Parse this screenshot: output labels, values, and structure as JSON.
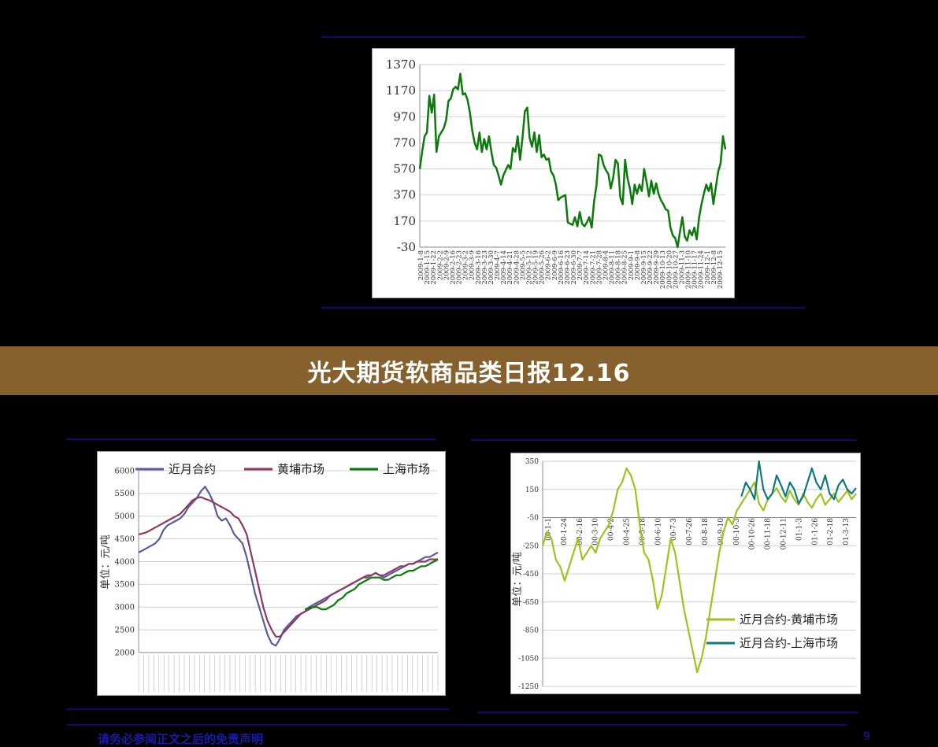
{
  "banner": {
    "title": "光大期货软商品类日报12.16"
  },
  "footer": {
    "text": "请务必参阅正文之后的免责声明",
    "page": "9"
  },
  "chart_data": [
    {
      "id": "top",
      "type": "line",
      "title": "",
      "ylim": [
        -30,
        1370
      ],
      "yticks": [
        1370,
        1170,
        970,
        770,
        570,
        370,
        170,
        -30
      ],
      "xticks": [
        "2009-1-8",
        "2009-1-15",
        "2009-1-22",
        "2009-2-2",
        "2009-2-9",
        "2009-2-16",
        "2009-2-23",
        "2009-3-2",
        "2009-3-9",
        "2009-3-16",
        "2009-3-23",
        "2009-3-30",
        "2009-4-7",
        "2009-4-14",
        "2009-4-21",
        "2009-4-28",
        "2009-5-5",
        "2009-5-12",
        "2009-5-19",
        "2009-5-26",
        "2009-6-2",
        "2009-6-9",
        "2009-6-16",
        "2009-6-23",
        "2009-6-30",
        "2009-7-7",
        "2009-7-14",
        "2009-7-21",
        "2009-7-28",
        "2009-8-4",
        "2009-8-11",
        "2009-8-18",
        "2009-8-25",
        "2009-9-1",
        "2009-9-8",
        "2009-9-15",
        "2009-9-22",
        "2009-9-29",
        "2009-10-13",
        "2009-10-20",
        "2009-10-27",
        "2009-11-3",
        "2009-11-10",
        "2009-11-17",
        "2009-11-24",
        "2009-12-1",
        "2009-12-8",
        "2009-12-15"
      ],
      "series": [
        {
          "color": "#0b7a0b",
          "values": [
            570,
            700,
            820,
            850,
            1130,
            1000,
            1140,
            700,
            820,
            850,
            880,
            940,
            1090,
            1110,
            1180,
            1200,
            1180,
            1300,
            1140,
            1150,
            1100,
            1000,
            860,
            770,
            720,
            850,
            700,
            800,
            720,
            820,
            700,
            600,
            580,
            520,
            450,
            520,
            560,
            600,
            570,
            730,
            700,
            820,
            640,
            800,
            1010,
            1040,
            810,
            740,
            850,
            700,
            830,
            660,
            680,
            640,
            650,
            550,
            520,
            450,
            330,
            350,
            360,
            370,
            160,
            150,
            140,
            200,
            130,
            240,
            150,
            130,
            160,
            200,
            120,
            320,
            440,
            680,
            670,
            600,
            560,
            530,
            420,
            500,
            640,
            610,
            350,
            300,
            640,
            500,
            420,
            300,
            450,
            380,
            450,
            400,
            570,
            470,
            360,
            480,
            380,
            460,
            380,
            330,
            300,
            260,
            250,
            120,
            60,
            40,
            -30,
            90,
            200,
            50,
            20,
            100,
            60,
            120,
            30,
            200,
            300,
            380,
            450,
            400,
            460,
            300,
            430,
            550,
            610,
            820,
            720
          ]
        }
      ]
    },
    {
      "id": "bottom-left",
      "type": "line",
      "ylabel": "单位：元/吨",
      "ylim": [
        2000,
        6000
      ],
      "yticks": [
        6000,
        5500,
        5000,
        4500,
        4000,
        3500,
        3000,
        2500,
        2000
      ],
      "series": [
        {
          "name": "近月合约",
          "color": "#5b5b9a",
          "values": [
            4200,
            4250,
            4300,
            4350,
            4400,
            4500,
            4700,
            4800,
            4850,
            4900,
            4950,
            5050,
            5200,
            5300,
            5400,
            5550,
            5650,
            5500,
            5300,
            5000,
            4900,
            4950,
            4800,
            4600,
            4500,
            4400,
            4100,
            3700,
            3300,
            3000,
            2700,
            2400,
            2200,
            2150,
            2300,
            2500,
            2600,
            2700,
            2800,
            2850,
            2900,
            3000,
            3050,
            3100,
            3150,
            3200,
            3250,
            3300,
            3350,
            3400,
            3450,
            3500,
            3550,
            3600,
            3650,
            3700,
            3700,
            3750,
            3700,
            3650,
            3700,
            3750,
            3800,
            3850,
            3900,
            3950,
            3950,
            4000,
            4050,
            4100,
            4100,
            4150,
            4200
          ]
        },
        {
          "name": "黄埔市场",
          "color": "#8b3a62",
          "values": [
            4600,
            4620,
            4650,
            4700,
            4750,
            4800,
            4850,
            4900,
            4950,
            5000,
            5050,
            5150,
            5250,
            5350,
            5400,
            5420,
            5380,
            5350,
            5300,
            5250,
            5200,
            5150,
            5100,
            5000,
            4950,
            4800,
            4600,
            4200,
            3800,
            3400,
            3000,
            2700,
            2500,
            2350,
            2350,
            2450,
            2550,
            2650,
            2750,
            2850,
            2900,
            2950,
            3000,
            3050,
            3100,
            3150,
            3250,
            3300,
            3350,
            3400,
            3450,
            3500,
            3550,
            3600,
            3650,
            3650,
            3700,
            3750,
            3700,
            3700,
            3750,
            3800,
            3850,
            3900,
            3900,
            3950,
            3950,
            4000,
            4000,
            4000,
            4050,
            4050,
            4050
          ]
        },
        {
          "name": "上海市场",
          "color": "#0b7a0b",
          "values": [
            null,
            null,
            null,
            null,
            null,
            null,
            null,
            null,
            null,
            null,
            null,
            null,
            null,
            null,
            null,
            null,
            null,
            null,
            null,
            null,
            null,
            null,
            null,
            null,
            null,
            null,
            null,
            null,
            null,
            null,
            null,
            null,
            null,
            null,
            null,
            null,
            null,
            null,
            null,
            null,
            2950,
            2980,
            3000,
            3000,
            2950,
            2950,
            3000,
            3050,
            3150,
            3200,
            3300,
            3350,
            3400,
            3500,
            3550,
            3600,
            3650,
            3650,
            3650,
            3600,
            3600,
            3650,
            3700,
            3700,
            3750,
            3800,
            3800,
            3850,
            3900,
            3900,
            3950,
            4000,
            4050
          ]
        }
      ]
    },
    {
      "id": "bottom-right",
      "type": "line",
      "ylabel": "单位：元/吨",
      "ylim": [
        -1250,
        350
      ],
      "yticks": [
        350,
        150,
        -50,
        -250,
        -450,
        -650,
        -850,
        -1050,
        -1250
      ],
      "xticks": [
        "00-1-1",
        "00-1-24",
        "00-2-16",
        "00-3-10",
        "00-4-2",
        "00-4-25",
        "00-5-18",
        "00-6-10",
        "00-7-3",
        "00-7-26",
        "00-8-18",
        "00-9-10",
        "00-10-3",
        "00-10-26",
        "00-11-18",
        "00-12-11",
        "01-1-3",
        "01-1-26",
        "01-2-18",
        "01-3-13"
      ],
      "series": [
        {
          "name": "近月合约-黄埔市场",
          "color": "#9dc41c",
          "values": [
            -250,
            -150,
            -200,
            -350,
            -400,
            -500,
            -400,
            -300,
            -200,
            -350,
            -300,
            -250,
            -300,
            -200,
            -150,
            -100,
            0,
            150,
            200,
            300,
            250,
            150,
            -100,
            -300,
            -350,
            -500,
            -700,
            -600,
            -400,
            -200,
            -300,
            -500,
            -700,
            -850,
            -1000,
            -1150,
            -1050,
            -900,
            -700,
            -500,
            -300,
            -150,
            -50,
            -100,
            0,
            50,
            100,
            150,
            200,
            50,
            0,
            80,
            120,
            160,
            100,
            60,
            140,
            80,
            40,
            120,
            60,
            20,
            80,
            120,
            40,
            80,
            120,
            60,
            100,
            140,
            80,
            120
          ]
        },
        {
          "name": "近月合约-上海市场",
          "color": "#0f7a7a",
          "values": [
            null,
            null,
            null,
            null,
            null,
            null,
            null,
            null,
            null,
            null,
            null,
            null,
            null,
            null,
            null,
            null,
            null,
            null,
            null,
            null,
            null,
            null,
            null,
            null,
            null,
            null,
            null,
            null,
            null,
            null,
            null,
            null,
            null,
            null,
            null,
            null,
            null,
            null,
            null,
            null,
            null,
            null,
            null,
            null,
            null,
            100,
            200,
            150,
            80,
            350,
            150,
            80,
            120,
            250,
            180,
            100,
            200,
            150,
            50,
            100,
            200,
            300,
            200,
            150,
            250,
            120,
            80,
            180,
            220,
            150,
            120,
            160
          ]
        }
      ]
    }
  ]
}
